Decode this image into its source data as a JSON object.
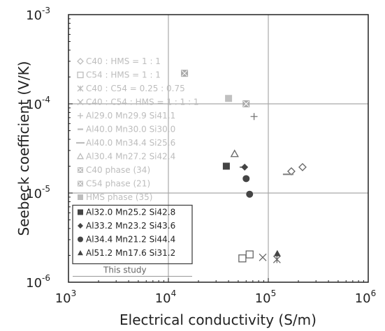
{
  "chart_data": {
    "type": "scatter",
    "xlabel": "Electrical conductivity (S/m)",
    "ylabel": "Seebeck coefficient (V/K)",
    "x_scale": "log",
    "y_scale": "log",
    "xlim": [
      1000,
      1000000
    ],
    "ylim": [
      1e-06,
      0.001
    ],
    "x_ticks": [
      {
        "value": 1000,
        "base": "10",
        "exp": "3"
      },
      {
        "value": 10000,
        "base": "10",
        "exp": "4"
      },
      {
        "value": 100000,
        "base": "10",
        "exp": "5"
      },
      {
        "value": 1000000,
        "base": "10",
        "exp": "6"
      }
    ],
    "y_ticks": [
      {
        "value": 1e-06,
        "base": "10",
        "exp": "-6"
      },
      {
        "value": 1e-05,
        "base": "10",
        "exp": "-5"
      },
      {
        "value": 0.0001,
        "base": "10",
        "exp": "-4"
      },
      {
        "value": 0.001,
        "base": "10",
        "exp": "-3"
      }
    ],
    "grid": true,
    "legend_position": "left",
    "note": "This study",
    "series": [
      {
        "name": "C40 : HMS = 1 : 1",
        "marker": "diamond-open",
        "color": "#666666",
        "group": "faded",
        "points": [
          [
            170000,
            1.75e-05
          ],
          [
            220000,
            1.95e-05
          ]
        ]
      },
      {
        "name": "C54 : HMS = 1 : 1",
        "marker": "square-open",
        "color": "#666666",
        "group": "faded",
        "points": [
          [
            55000,
            1.85e-06
          ],
          [
            65000,
            2.05e-06
          ]
        ]
      },
      {
        "name": "C40 : C54 = 0.25 : 0.75",
        "marker": "star",
        "color": "#666666",
        "group": "faded",
        "points": [
          [
            122000,
            1.8e-06
          ]
        ]
      },
      {
        "name": "C40 : C54 : HMS = 1 : 1 : 1",
        "marker": "x",
        "color": "#666666",
        "group": "faded",
        "points": [
          [
            88000,
            1.9e-06
          ]
        ]
      },
      {
        "name": "Al29.0 Mn29.9 Si41.1",
        "marker": "plus",
        "color": "#777777",
        "group": "faded",
        "points": [
          [
            72000,
            7.2e-05
          ]
        ]
      },
      {
        "name": "Al40.0 Mn30.0 Si30.0",
        "marker": "dash",
        "color": "#888888",
        "group": "faded",
        "points": [
          [
            56000,
            1.95e-05
          ]
        ]
      },
      {
        "name": "Al40.0 Mn34.4 Si25.6",
        "marker": "dash-long",
        "color": "#888888",
        "group": "faded",
        "points": [
          [
            158000,
            1.62e-05
          ]
        ]
      },
      {
        "name": "Al30.4 Mn27.2 Si42.4",
        "marker": "triangle-open",
        "color": "#666666",
        "group": "faded",
        "points": [
          [
            46000,
            2.75e-05
          ]
        ]
      },
      {
        "name": "C40 phase (34)",
        "marker": "square-x",
        "color": "#aaaaaa",
        "group": "faded",
        "points": [
          [
            14500,
            0.00022
          ]
        ]
      },
      {
        "name": "C54 phase (21)",
        "marker": "square-x",
        "color": "#aaaaaa",
        "group": "faded",
        "points": [
          [
            60000,
            0.0001
          ]
        ]
      },
      {
        "name": "HMS phase (35)",
        "marker": "square-filled",
        "color": "#c0c0c0",
        "group": "faded",
        "points": [
          [
            40000,
            0.000115
          ]
        ]
      },
      {
        "name": "Al32.0 Mn25.2 Si42.8",
        "marker": "square-filled",
        "color": "#444444",
        "group": "study",
        "points": [
          [
            38000,
            2e-05
          ]
        ]
      },
      {
        "name": "Al33.2 Mn23.2 Si43.6",
        "marker": "diamond-filled",
        "color": "#444444",
        "group": "study",
        "points": [
          [
            58000,
            1.95e-05
          ]
        ]
      },
      {
        "name": "Al34.4 Mn21.2 Si44.4",
        "marker": "circle-filled",
        "color": "#444444",
        "group": "study",
        "points": [
          [
            60000,
            1.45e-05
          ],
          [
            65000,
            9.7e-06
          ]
        ]
      },
      {
        "name": "Al51.2 Mn17.6 Si31.2",
        "marker": "triangle-filled",
        "color": "#444444",
        "group": "study",
        "points": [
          [
            123000,
            2.1e-06
          ]
        ]
      }
    ]
  }
}
